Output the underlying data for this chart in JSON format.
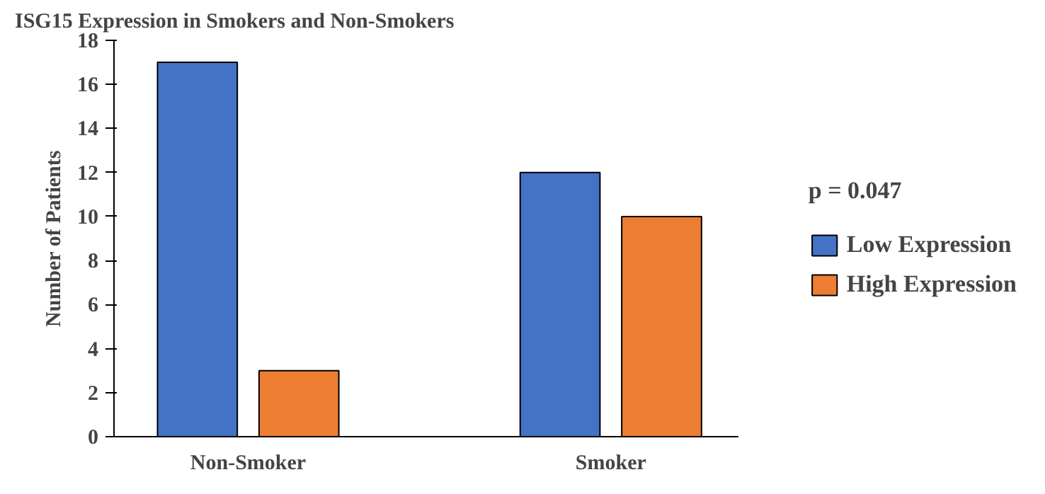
{
  "chart_data": {
    "type": "bar",
    "title": "ISG15 Expression in Smokers and Non-Smokers",
    "ylabel": "Number of Patients",
    "categories": [
      "Non-Smoker",
      "Smoker"
    ],
    "series": [
      {
        "name": "Low Expression",
        "color": "#4472c4",
        "values": [
          17,
          12
        ]
      },
      {
        "name": "High Expression",
        "color": "#ed7d31",
        "values": [
          3,
          10
        ]
      }
    ],
    "ylim": [
      0,
      18
    ],
    "yticks": [
      0,
      2,
      4,
      6,
      8,
      10,
      12,
      14,
      16,
      18
    ],
    "grid": false,
    "legend": "right",
    "annotations": [
      "p = 0.047"
    ]
  }
}
